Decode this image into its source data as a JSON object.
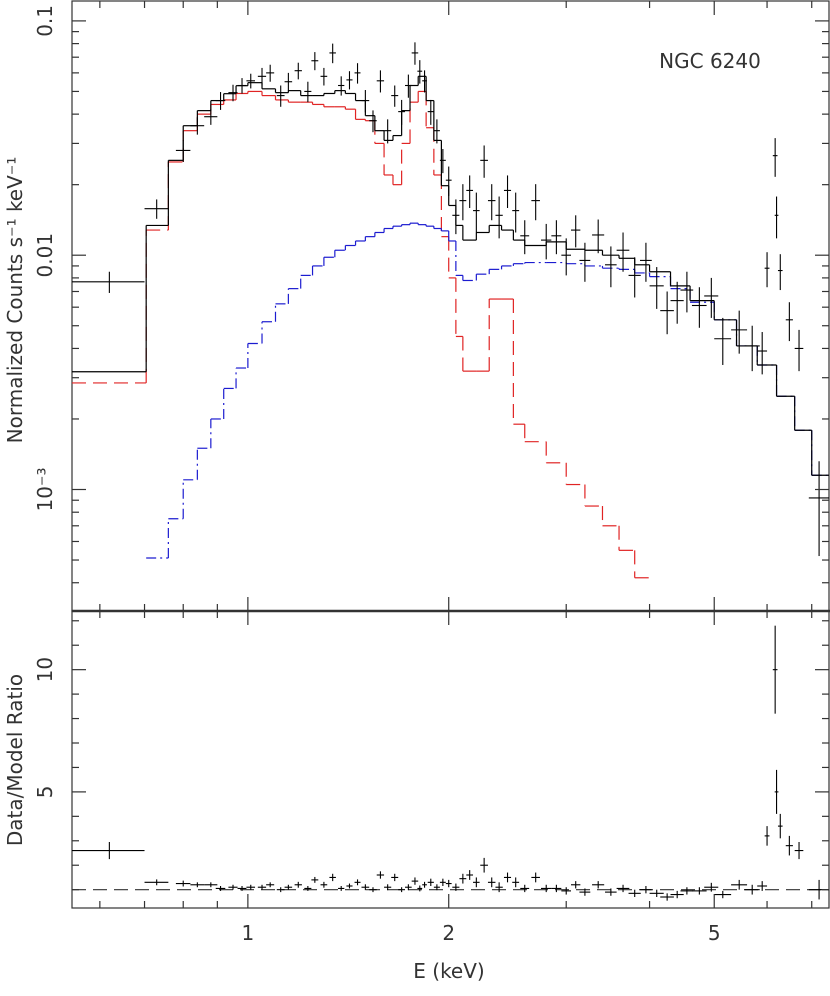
{
  "chart_data": [
    {
      "type": "spectrum",
      "annotation": "NGC 6240",
      "ylabel": "Normalized Counts s⁻¹ keV⁻¹",
      "xlog": true,
      "ylog": true,
      "xlim": [
        0.545,
        7.43
      ],
      "ylim": [
        0.000303,
        0.1216
      ],
      "yticks": [
        0.1,
        0.01,
        {
          "value": 0.001,
          "label": "10⁻³"
        }
      ],
      "yminorticks": [
        0.0004,
        0.0005,
        0.0006,
        0.0007,
        0.0008,
        0.0009,
        0.002,
        0.003,
        0.004,
        0.005,
        0.006,
        0.007,
        0.008,
        0.009,
        0.02,
        0.03,
        0.04,
        0.05,
        0.06,
        0.07,
        0.08,
        0.09
      ],
      "data": {
        "color": "#000000",
        "x": [
          0.62,
          0.73,
          0.8,
          0.84,
          0.88,
          0.91,
          0.95,
          0.98,
          1.01,
          1.05,
          1.08,
          1.12,
          1.15,
          1.19,
          1.23,
          1.26,
          1.3,
          1.34,
          1.38,
          1.42,
          1.46,
          1.5,
          1.54,
          1.58,
          1.62,
          1.66,
          1.7,
          1.74,
          1.78,
          1.81,
          1.84,
          1.88,
          1.92,
          1.96,
          2.0,
          2.05,
          2.1,
          2.15,
          2.2,
          2.26,
          2.32,
          2.38,
          2.45,
          2.52,
          2.6,
          2.7,
          2.8,
          2.9,
          3.0,
          3.1,
          3.2,
          3.35,
          3.5,
          3.65,
          3.8,
          3.95,
          4.1,
          4.25,
          4.4,
          4.55,
          4.75,
          4.95,
          5.15,
          5.45,
          5.7,
          5.9,
          6.0,
          6.17,
          6.2,
          6.28,
          6.48,
          6.7,
          7.18
        ],
        "xerr": [
          0.08,
          0.03,
          0.02,
          0.02,
          0.02,
          0.015,
          0.015,
          0.015,
          0.015,
          0.015,
          0.015,
          0.015,
          0.015,
          0.015,
          0.015,
          0.015,
          0.015,
          0.015,
          0.015,
          0.015,
          0.015,
          0.02,
          0.02,
          0.02,
          0.02,
          0.02,
          0.02,
          0.02,
          0.02,
          0.015,
          0.015,
          0.02,
          0.02,
          0.02,
          0.02,
          0.025,
          0.025,
          0.025,
          0.025,
          0.03,
          0.03,
          0.03,
          0.03,
          0.03,
          0.04,
          0.04,
          0.05,
          0.05,
          0.05,
          0.05,
          0.06,
          0.07,
          0.07,
          0.08,
          0.08,
          0.08,
          0.1,
          0.1,
          0.1,
          0.1,
          0.12,
          0.12,
          0.15,
          0.15,
          0.15,
          0.1,
          0.05,
          0.05,
          0.04,
          0.05,
          0.08,
          0.1,
          0.25
        ],
        "y": [
          0.0077,
          0.0158,
          0.028,
          0.0357,
          0.039,
          0.0457,
          0.0494,
          0.053,
          0.0555,
          0.058,
          0.06,
          0.048,
          0.055,
          0.0613,
          0.05,
          0.0676,
          0.058,
          0.073,
          0.053,
          0.056,
          0.06,
          0.0457,
          0.0375,
          0.0555,
          0.034,
          0.048,
          0.041,
          0.053,
          0.073,
          0.061,
          0.0555,
          0.041,
          0.034,
          0.0254,
          0.0209,
          0.0148,
          0.0171,
          0.0189,
          0.0155,
          0.0254,
          0.0171,
          0.0148,
          0.0189,
          0.0155,
          0.0121,
          0.0171,
          0.0116,
          0.0121,
          0.01,
          0.0128,
          0.0095,
          0.0122,
          0.0091,
          0.0105,
          0.0082,
          0.0095,
          0.0074,
          0.0058,
          0.0064,
          0.0071,
          0.0061,
          0.0067,
          0.0044,
          0.0048,
          0.0041,
          0.0039,
          0.0088,
          0.0266,
          0.0148,
          0.0086,
          0.0053,
          0.004,
          0.00092
        ],
        "yerr": [
          0.0008,
          0.0015,
          0.003,
          0.003,
          0.003,
          0.004,
          0.004,
          0.004,
          0.004,
          0.005,
          0.005,
          0.005,
          0.005,
          0.005,
          0.005,
          0.006,
          0.005,
          0.007,
          0.005,
          0.005,
          0.006,
          0.005,
          0.004,
          0.006,
          0.004,
          0.005,
          0.005,
          0.006,
          0.008,
          0.007,
          0.006,
          0.005,
          0.004,
          0.003,
          0.003,
          0.0025,
          0.003,
          0.003,
          0.003,
          0.004,
          0.003,
          0.003,
          0.003,
          0.003,
          0.002,
          0.003,
          0.002,
          0.002,
          0.0018,
          0.002,
          0.0018,
          0.002,
          0.0018,
          0.002,
          0.0016,
          0.0018,
          0.0015,
          0.0012,
          0.0013,
          0.0014,
          0.0012,
          0.0013,
          0.001,
          0.001,
          0.0009,
          0.0008,
          0.0015,
          0.005,
          0.003,
          0.0015,
          0.001,
          0.0008,
          0.0004
        ]
      },
      "model": {
        "bins": [
          0.545,
          0.704,
          0.76,
          0.8,
          0.84,
          0.88,
          0.92,
          0.96,
          1.0,
          1.05,
          1.1,
          1.15,
          1.2,
          1.25,
          1.3,
          1.35,
          1.4,
          1.45,
          1.5,
          1.55,
          1.6,
          1.65,
          1.7,
          1.75,
          1.8,
          1.85,
          1.9,
          1.95,
          2.0,
          2.05,
          2.1,
          2.2,
          2.3,
          2.4,
          2.5,
          2.6,
          2.8,
          3.0,
          3.2,
          3.4,
          3.6,
          3.8,
          4.0,
          4.3,
          4.6,
          5.0,
          5.4,
          5.8,
          6.2,
          6.6,
          7.0,
          7.43
        ],
        "components": [
          {
            "color": "#e02424",
            "dash": "dashed",
            "values": [
              0.00285,
              0.0128,
              0.025,
              0.034,
              0.04,
              0.044,
              0.046,
              0.049,
              0.05,
              0.048,
              0.046,
              0.045,
              0.045,
              0.044,
              0.043,
              0.043,
              0.042,
              0.038,
              0.0375,
              0.03,
              0.022,
              0.02,
              0.03,
              0.045,
              0.05,
              0.035,
              0.022,
              0.012,
              0.008,
              0.0045,
              0.0032,
              0.0032,
              0.0065,
              0.0065,
              0.0019,
              0.0016,
              0.0013,
              0.00105,
              0.00085,
              0.0007,
              0.00055,
              0.00042,
              null,
              null,
              null,
              null,
              null,
              null,
              null,
              null,
              null
            ]
          },
          {
            "color": "#1c1cd0",
            "dash": "dashdot",
            "values": [
              null,
              0.00051,
              0.00075,
              0.0011,
              0.0015,
              0.002,
              0.0027,
              0.0033,
              0.0042,
              0.0052,
              0.0062,
              0.0072,
              0.0082,
              0.009,
              0.0098,
              0.0105,
              0.011,
              0.0115,
              0.012,
              0.0125,
              0.013,
              0.0133,
              0.0135,
              0.0137,
              0.0135,
              0.0133,
              0.013,
              0.0127,
              0.0115,
              0.0082,
              0.0078,
              0.0083,
              0.0087,
              0.009,
              0.0092,
              0.0093,
              0.0093,
              0.0092,
              0.009,
              0.0088,
              0.0087,
              0.0084,
              0.0081,
              0.0072,
              0.0063,
              0.0053,
              0.0041,
              0.0034,
              0.0025,
              0.00179,
              0.00115
            ]
          },
          {
            "color": "#000000",
            "dash": "solid",
            "values": [
              0.00318,
              0.0134,
              0.0254,
              0.0357,
              0.0414,
              0.0457,
              0.0489,
              0.0529,
              0.0545,
              0.0513,
              0.0494,
              0.0504,
              0.048,
              0.048,
              0.049,
              0.0504,
              0.049,
              0.0457,
              0.0394,
              0.034,
              0.0309,
              0.0324,
              0.0414,
              0.053,
              0.058,
              0.0457,
              0.0309,
              0.0198,
              0.0163,
              0.0134,
              0.0116,
              0.0125,
              0.0134,
              0.0128,
              0.0116,
              0.011,
              0.0114,
              0.0106,
              0.0105,
              0.01,
              0.0097,
              0.0091,
              0.0085,
              0.0074,
              0.0064,
              0.0053,
              0.0041,
              0.0034,
              0.0025,
              0.00179,
              0.00115
            ]
          }
        ]
      }
    },
    {
      "type": "ratio",
      "xlabel": "E (keV)",
      "ylabel": "Data/Model Ratio",
      "xlog": true,
      "xlim": [
        0.545,
        7.43
      ],
      "ylim": [
        0.25,
        12.4
      ],
      "xticks": [
        1,
        2,
        5
      ],
      "xminorticks": [
        0.6,
        0.7,
        0.8,
        0.9,
        3,
        4,
        6,
        7
      ],
      "yticks": [
        5,
        10
      ],
      "yminorticks": [
        1,
        2,
        3,
        4,
        6,
        7,
        8,
        9,
        11,
        12
      ],
      "reference": 1,
      "color": "#000000",
      "values": [
        2.6,
        1.3,
        1.25,
        1.2,
        1.2,
        1.05,
        1.1,
        1.05,
        1.1,
        1.1,
        1.2,
        1.0,
        1.1,
        1.2,
        1.05,
        1.4,
        1.2,
        1.5,
        1.05,
        1.15,
        1.3,
        1.1,
        1.0,
        1.6,
        1.1,
        1.5,
        1.0,
        1.1,
        1.35,
        1.05,
        1.2,
        1.3,
        1.1,
        1.3,
        1.25,
        1.1,
        1.45,
        1.6,
        1.3,
        2.0,
        1.3,
        1.1,
        1.5,
        1.3,
        1.05,
        1.5,
        1.05,
        1.05,
        0.95,
        1.2,
        0.9,
        1.2,
        0.9,
        1.05,
        0.85,
        1.0,
        0.85,
        0.7,
        0.8,
        0.95,
        0.95,
        1.1,
        0.8,
        1.2,
        1.0,
        1.15,
        3.2,
        10.0,
        5.0,
        3.6,
        2.8,
        2.6,
        1.0
      ],
      "errors": [
        0.35,
        0.12,
        0.12,
        0.1,
        0.1,
        0.1,
        0.1,
        0.1,
        0.1,
        0.1,
        0.1,
        0.1,
        0.1,
        0.12,
        0.1,
        0.12,
        0.12,
        0.15,
        0.1,
        0.1,
        0.12,
        0.12,
        0.1,
        0.15,
        0.12,
        0.15,
        0.1,
        0.12,
        0.15,
        0.12,
        0.12,
        0.15,
        0.12,
        0.15,
        0.15,
        0.15,
        0.2,
        0.2,
        0.2,
        0.3,
        0.2,
        0.2,
        0.2,
        0.2,
        0.15,
        0.2,
        0.15,
        0.15,
        0.15,
        0.15,
        0.15,
        0.15,
        0.15,
        0.15,
        0.15,
        0.15,
        0.15,
        0.15,
        0.15,
        0.15,
        0.15,
        0.18,
        0.15,
        0.2,
        0.2,
        0.2,
        0.4,
        1.8,
        0.9,
        0.5,
        0.4,
        0.35,
        0.4
      ]
    }
  ]
}
